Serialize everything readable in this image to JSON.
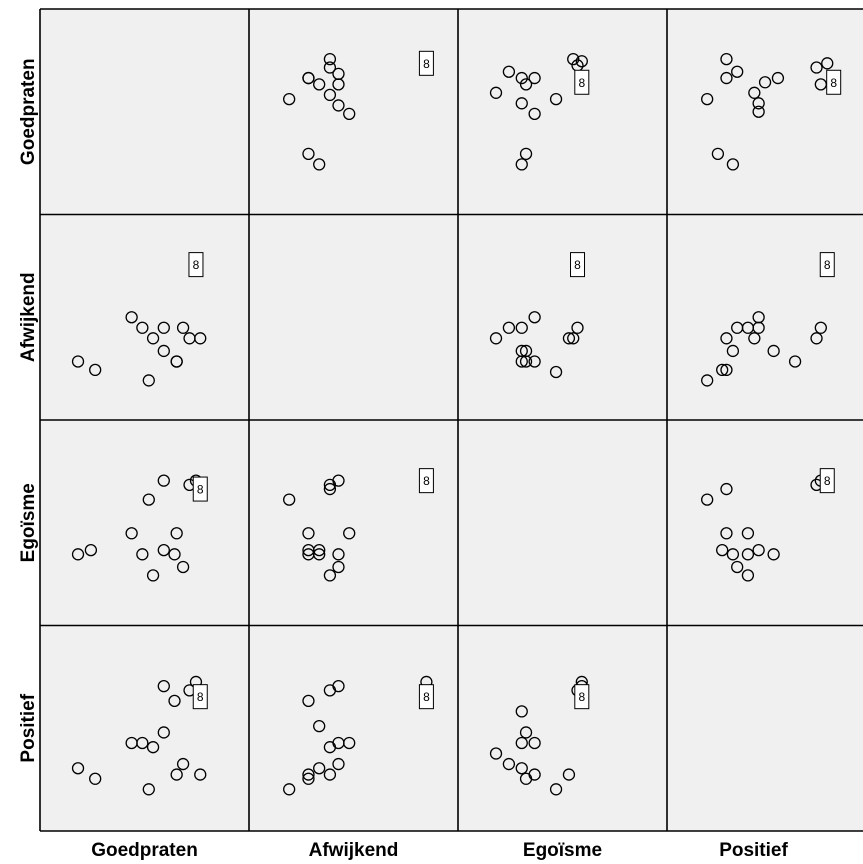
{
  "chart_data": {
    "type": "scatter",
    "variables": [
      "Goedpraten",
      "Afwijkend",
      "Egoïsme",
      "Positief"
    ],
    "case_label_text": "8",
    "point_style": "open-circle",
    "panel_background": "#f0f0f0",
    "grid": false,
    "panels": [
      {
        "row": "Goedpraten",
        "col": "Afwijkend",
        "points": [
          {
            "x": 3.4,
            "y": 7.0
          },
          {
            "x": 3.4,
            "y": 6.6
          },
          {
            "x": 3.8,
            "y": 6.3
          },
          {
            "x": 2.4,
            "y": 6.1
          },
          {
            "x": 2.4,
            "y": 6.1
          },
          {
            "x": 2.9,
            "y": 5.8
          },
          {
            "x": 3.8,
            "y": 5.8
          },
          {
            "x": 1.5,
            "y": 5.1
          },
          {
            "x": 3.4,
            "y": 5.3
          },
          {
            "x": 3.8,
            "y": 4.8
          },
          {
            "x": 4.3,
            "y": 4.4
          },
          {
            "x": 2.4,
            "y": 2.5
          },
          {
            "x": 2.9,
            "y": 2.0
          },
          {
            "x": 7.9,
            "y": 6.8,
            "label": "8"
          }
        ]
      },
      {
        "row": "Goedpraten",
        "col": "Egoïsme",
        "points": [
          {
            "x": 2.0,
            "y": 6.4
          },
          {
            "x": 2.6,
            "y": 6.1
          },
          {
            "x": 3.2,
            "y": 6.1
          },
          {
            "x": 2.8,
            "y": 5.8
          },
          {
            "x": 1.4,
            "y": 5.4
          },
          {
            "x": 2.6,
            "y": 4.9
          },
          {
            "x": 3.2,
            "y": 4.4
          },
          {
            "x": 4.2,
            "y": 5.1
          },
          {
            "x": 2.8,
            "y": 2.5
          },
          {
            "x": 2.6,
            "y": 2.0
          },
          {
            "x": 5.0,
            "y": 7.0
          },
          {
            "x": 5.2,
            "y": 6.7
          },
          {
            "x": 5.4,
            "y": 6.9
          },
          {
            "x": 5.4,
            "y": 5.9,
            "label": "8"
          }
        ]
      },
      {
        "row": "Goedpraten",
        "col": "Positief",
        "points": [
          {
            "x": 2.4,
            "y": 7.0
          },
          {
            "x": 2.9,
            "y": 6.4
          },
          {
            "x": 2.4,
            "y": 6.1
          },
          {
            "x": 4.2,
            "y": 5.9
          },
          {
            "x": 3.7,
            "y": 5.4
          },
          {
            "x": 1.5,
            "y": 5.1
          },
          {
            "x": 3.9,
            "y": 4.9
          },
          {
            "x": 3.9,
            "y": 4.5
          },
          {
            "x": 4.8,
            "y": 6.1
          },
          {
            "x": 6.6,
            "y": 6.6
          },
          {
            "x": 7.1,
            "y": 6.8
          },
          {
            "x": 6.8,
            "y": 5.8
          },
          {
            "x": 2.0,
            "y": 2.5
          },
          {
            "x": 2.7,
            "y": 2.0
          },
          {
            "x": 7.4,
            "y": 5.9,
            "label": "8"
          }
        ]
      },
      {
        "row": "Afwijkend",
        "col": "Goedpraten",
        "points": [
          {
            "x": 1.4,
            "y": 2.4
          },
          {
            "x": 2.2,
            "y": 2.0
          },
          {
            "x": 3.9,
            "y": 4.5
          },
          {
            "x": 4.4,
            "y": 4.0
          },
          {
            "x": 4.9,
            "y": 3.5
          },
          {
            "x": 5.4,
            "y": 4.0
          },
          {
            "x": 5.4,
            "y": 2.9
          },
          {
            "x": 4.7,
            "y": 1.5
          },
          {
            "x": 6.0,
            "y": 2.4
          },
          {
            "x": 6.0,
            "y": 2.4
          },
          {
            "x": 6.3,
            "y": 4.0
          },
          {
            "x": 6.6,
            "y": 3.5
          },
          {
            "x": 7.1,
            "y": 3.5
          },
          {
            "x": 6.9,
            "y": 7.0,
            "label": "8"
          }
        ]
      },
      {
        "row": "Afwijkend",
        "col": "Egoïsme",
        "points": [
          {
            "x": 1.4,
            "y": 3.5
          },
          {
            "x": 2.0,
            "y": 4.0
          },
          {
            "x": 2.6,
            "y": 4.0
          },
          {
            "x": 3.2,
            "y": 4.5
          },
          {
            "x": 2.6,
            "y": 2.9
          },
          {
            "x": 2.8,
            "y": 2.9
          },
          {
            "x": 2.6,
            "y": 2.4
          },
          {
            "x": 2.8,
            "y": 2.4
          },
          {
            "x": 3.2,
            "y": 2.4
          },
          {
            "x": 4.2,
            "y": 1.9
          },
          {
            "x": 4.8,
            "y": 3.5
          },
          {
            "x": 5.0,
            "y": 3.5
          },
          {
            "x": 5.2,
            "y": 4.0
          },
          {
            "x": 5.2,
            "y": 7.0,
            "label": "8"
          }
        ]
      },
      {
        "row": "Afwijkend",
        "col": "Positief",
        "points": [
          {
            "x": 1.5,
            "y": 1.5
          },
          {
            "x": 2.2,
            "y": 2.0
          },
          {
            "x": 2.4,
            "y": 2.0
          },
          {
            "x": 2.7,
            "y": 2.9
          },
          {
            "x": 2.4,
            "y": 3.5
          },
          {
            "x": 2.9,
            "y": 4.0
          },
          {
            "x": 3.4,
            "y": 4.0
          },
          {
            "x": 3.7,
            "y": 3.5
          },
          {
            "x": 3.9,
            "y": 4.0
          },
          {
            "x": 3.9,
            "y": 4.5
          },
          {
            "x": 4.6,
            "y": 2.9
          },
          {
            "x": 5.6,
            "y": 2.4
          },
          {
            "x": 6.6,
            "y": 3.5
          },
          {
            "x": 6.8,
            "y": 4.0
          },
          {
            "x": 7.1,
            "y": 7.0,
            "label": "8"
          }
        ]
      },
      {
        "row": "Egoïsme",
        "col": "Goedpraten",
        "points": [
          {
            "x": 1.4,
            "y": 3.0
          },
          {
            "x": 2.0,
            "y": 3.2
          },
          {
            "x": 3.9,
            "y": 4.0
          },
          {
            "x": 4.4,
            "y": 3.0
          },
          {
            "x": 4.7,
            "y": 5.6
          },
          {
            "x": 4.9,
            "y": 2.0
          },
          {
            "x": 5.4,
            "y": 6.5
          },
          {
            "x": 5.4,
            "y": 3.2
          },
          {
            "x": 5.9,
            "y": 3.0
          },
          {
            "x": 6.0,
            "y": 4.0
          },
          {
            "x": 6.3,
            "y": 2.4
          },
          {
            "x": 6.6,
            "y": 6.3
          },
          {
            "x": 6.9,
            "y": 6.5
          },
          {
            "x": 7.1,
            "y": 6.1,
            "label": "8"
          }
        ]
      },
      {
        "row": "Egoïsme",
        "col": "Afwijkend",
        "points": [
          {
            "x": 1.5,
            "y": 5.6
          },
          {
            "x": 2.4,
            "y": 4.0
          },
          {
            "x": 2.4,
            "y": 3.2
          },
          {
            "x": 2.4,
            "y": 3.0
          },
          {
            "x": 2.9,
            "y": 3.2
          },
          {
            "x": 2.9,
            "y": 3.0
          },
          {
            "x": 3.4,
            "y": 6.3
          },
          {
            "x": 3.4,
            "y": 6.1
          },
          {
            "x": 3.8,
            "y": 6.5
          },
          {
            "x": 3.8,
            "y": 3.0
          },
          {
            "x": 3.8,
            "y": 2.4
          },
          {
            "x": 3.4,
            "y": 2.0
          },
          {
            "x": 4.3,
            "y": 4.0
          },
          {
            "x": 7.9,
            "y": 6.5,
            "label": "8"
          }
        ]
      },
      {
        "row": "Egoïsme",
        "col": "Positief",
        "points": [
          {
            "x": 1.5,
            "y": 5.6
          },
          {
            "x": 2.4,
            "y": 6.1
          },
          {
            "x": 2.4,
            "y": 4.0
          },
          {
            "x": 3.4,
            "y": 4.0
          },
          {
            "x": 2.2,
            "y": 3.2
          },
          {
            "x": 2.7,
            "y": 3.0
          },
          {
            "x": 3.4,
            "y": 3.0
          },
          {
            "x": 3.9,
            "y": 3.2
          },
          {
            "x": 4.6,
            "y": 3.0
          },
          {
            "x": 2.9,
            "y": 2.4
          },
          {
            "x": 3.4,
            "y": 2.0
          },
          {
            "x": 6.6,
            "y": 6.3
          },
          {
            "x": 6.8,
            "y": 6.5
          },
          {
            "x": 7.1,
            "y": 6.5,
            "label": "8"
          }
        ]
      },
      {
        "row": "Positief",
        "col": "Goedpraten",
        "points": [
          {
            "x": 1.4,
            "y": 2.6
          },
          {
            "x": 2.2,
            "y": 2.1
          },
          {
            "x": 3.9,
            "y": 3.8
          },
          {
            "x": 4.4,
            "y": 3.8
          },
          {
            "x": 4.9,
            "y": 3.6
          },
          {
            "x": 5.4,
            "y": 4.3
          },
          {
            "x": 5.4,
            "y": 6.5
          },
          {
            "x": 5.9,
            "y": 5.8
          },
          {
            "x": 6.0,
            "y": 2.3
          },
          {
            "x": 6.3,
            "y": 2.8
          },
          {
            "x": 4.7,
            "y": 1.6
          },
          {
            "x": 6.6,
            "y": 6.3
          },
          {
            "x": 6.9,
            "y": 6.7
          },
          {
            "x": 7.1,
            "y": 2.3
          },
          {
            "x": 7.1,
            "y": 6.0,
            "label": "8"
          }
        ]
      },
      {
        "row": "Positief",
        "col": "Afwijkend",
        "points": [
          {
            "x": 1.5,
            "y": 1.6
          },
          {
            "x": 2.4,
            "y": 2.1
          },
          {
            "x": 2.4,
            "y": 2.3
          },
          {
            "x": 2.9,
            "y": 2.6
          },
          {
            "x": 3.4,
            "y": 2.3
          },
          {
            "x": 3.8,
            "y": 2.8
          },
          {
            "x": 3.4,
            "y": 3.6
          },
          {
            "x": 3.8,
            "y": 3.8
          },
          {
            "x": 4.3,
            "y": 3.8
          },
          {
            "x": 2.9,
            "y": 4.6
          },
          {
            "x": 2.4,
            "y": 5.8
          },
          {
            "x": 3.4,
            "y": 6.3
          },
          {
            "x": 3.8,
            "y": 6.5
          },
          {
            "x": 7.9,
            "y": 6.7
          },
          {
            "x": 7.9,
            "y": 6.0,
            "label": "8"
          }
        ]
      },
      {
        "row": "Positief",
        "col": "Egoïsme",
        "points": [
          {
            "x": 1.4,
            "y": 3.3
          },
          {
            "x": 2.0,
            "y": 2.8
          },
          {
            "x": 2.6,
            "y": 2.6
          },
          {
            "x": 2.8,
            "y": 2.1
          },
          {
            "x": 3.2,
            "y": 2.3
          },
          {
            "x": 2.6,
            "y": 3.8
          },
          {
            "x": 3.2,
            "y": 3.8
          },
          {
            "x": 2.8,
            "y": 4.3
          },
          {
            "x": 2.6,
            "y": 5.3
          },
          {
            "x": 4.2,
            "y": 1.6
          },
          {
            "x": 4.8,
            "y": 2.3
          },
          {
            "x": 5.2,
            "y": 6.3
          },
          {
            "x": 5.4,
            "y": 6.7
          },
          {
            "x": 5.4,
            "y": 6.5
          },
          {
            "x": 5.4,
            "y": 6.0,
            "label": "8"
          }
        ]
      }
    ]
  }
}
